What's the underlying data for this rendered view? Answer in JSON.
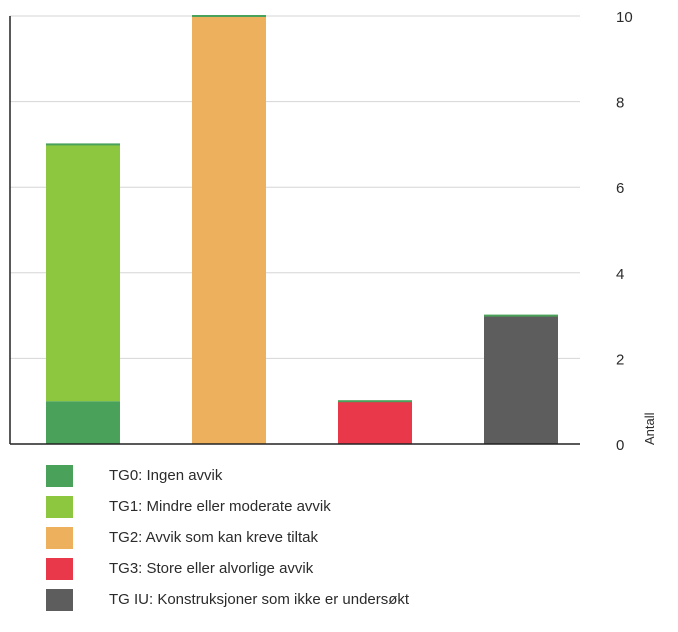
{
  "chart_data": {
    "type": "bar",
    "stacked": true,
    "categories": [
      "",
      "",
      "",
      ""
    ],
    "series": [
      {
        "name": "TG0: Ingen avvik",
        "color": "#4aa15a",
        "values": [
          1,
          0,
          0,
          0
        ]
      },
      {
        "name": "TG1: Mindre eller moderate avvik",
        "color": "#8dc63f",
        "values": [
          6,
          0,
          0,
          0
        ]
      },
      {
        "name": "TG2: Avvik som kan kreve tiltak",
        "color": "#edb05c",
        "values": [
          0,
          10,
          0,
          0
        ]
      },
      {
        "name": "TG3: Store eller alvorlige avvik",
        "color": "#e8384a",
        "values": [
          0,
          0,
          1,
          0
        ]
      },
      {
        "name": "TG IU: Konstruksjoner som ikke er undersøkt",
        "color": "#5d5d5d",
        "values": [
          0,
          0,
          0,
          3
        ]
      }
    ],
    "ylabel": "Antall",
    "ylim": [
      0,
      10
    ],
    "yticks": [
      0,
      2,
      4,
      6,
      8,
      10
    ],
    "y_axis_side": "right",
    "grid": true,
    "legend_placement": "bottom"
  }
}
